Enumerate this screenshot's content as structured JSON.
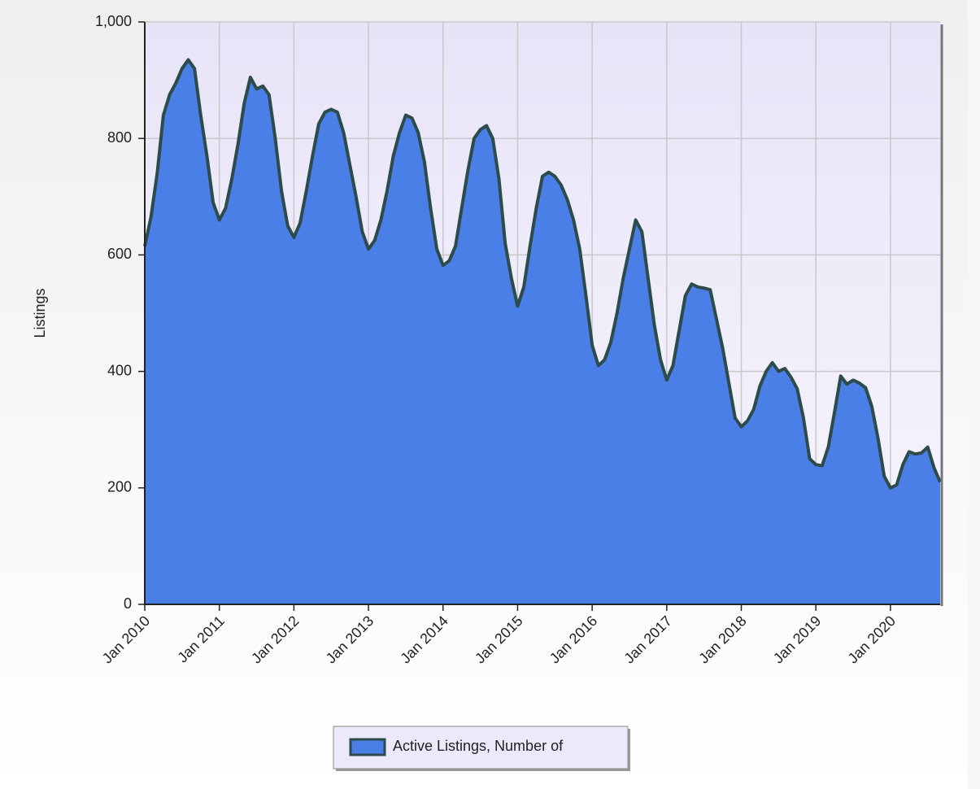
{
  "chart_data": {
    "type": "area",
    "categories": [
      "Jan 2010",
      null,
      null,
      null,
      null,
      null,
      null,
      null,
      null,
      null,
      null,
      null,
      "Jan 2011",
      null,
      null,
      null,
      null,
      null,
      null,
      null,
      null,
      null,
      null,
      null,
      "Jan 2012",
      null,
      null,
      null,
      null,
      null,
      null,
      null,
      null,
      null,
      null,
      null,
      "Jan 2013",
      null,
      null,
      null,
      null,
      null,
      null,
      null,
      null,
      null,
      null,
      null,
      "Jan 2014",
      null,
      null,
      null,
      null,
      null,
      null,
      null,
      null,
      null,
      null,
      null,
      "Jan 2015",
      null,
      null,
      null,
      null,
      null,
      null,
      null,
      null,
      null,
      null,
      null,
      "Jan 2016",
      null,
      null,
      null,
      null,
      null,
      null,
      null,
      null,
      null,
      null,
      null,
      "Jan 2017",
      null,
      null,
      null,
      null,
      null,
      null,
      null,
      null,
      null,
      null,
      null,
      "Jan 2018",
      null,
      null,
      null,
      null,
      null,
      null,
      null,
      null,
      null,
      null,
      null,
      "Jan 2019",
      null,
      null,
      null,
      null,
      null,
      null,
      null,
      null,
      null,
      null,
      null,
      "Jan 2020",
      null,
      null,
      null,
      null,
      null,
      null,
      null,
      null
    ],
    "series": [
      {
        "name": "Active Listings, Number of",
        "color": "#4a7fe8",
        "line_color": "#2d4b4b",
        "values": [
          615,
          665,
          740,
          840,
          875,
          895,
          920,
          935,
          920,
          840,
          770,
          690,
          660,
          680,
          730,
          790,
          860,
          905,
          885,
          890,
          875,
          800,
          710,
          650,
          630,
          655,
          710,
          770,
          825,
          845,
          850,
          845,
          810,
          755,
          700,
          640,
          610,
          625,
          660,
          710,
          770,
          810,
          840,
          835,
          810,
          760,
          680,
          610,
          582,
          590,
          615,
          680,
          745,
          800,
          815,
          822,
          800,
          730,
          620,
          560,
          512,
          545,
          615,
          680,
          735,
          742,
          735,
          720,
          695,
          660,
          610,
          530,
          445,
          410,
          420,
          450,
          500,
          560,
          610,
          660,
          640,
          560,
          480,
          420,
          385,
          410,
          470,
          530,
          550,
          545,
          543,
          540,
          490,
          440,
          380,
          320,
          305,
          315,
          335,
          375,
          400,
          415,
          400,
          405,
          390,
          370,
          320,
          250,
          240,
          238,
          270,
          330,
          392,
          378,
          385,
          380,
          372,
          340,
          285,
          220,
          200,
          205,
          240,
          262,
          258,
          260,
          270,
          235,
          210
        ]
      }
    ],
    "y_label": "Listings",
    "ylim": [
      0,
      1000
    ],
    "yticks": [
      0,
      200,
      400,
      600,
      800,
      {
        "value": 1000,
        "label": "1,000"
      }
    ],
    "grid": true,
    "legend": "bottom"
  }
}
